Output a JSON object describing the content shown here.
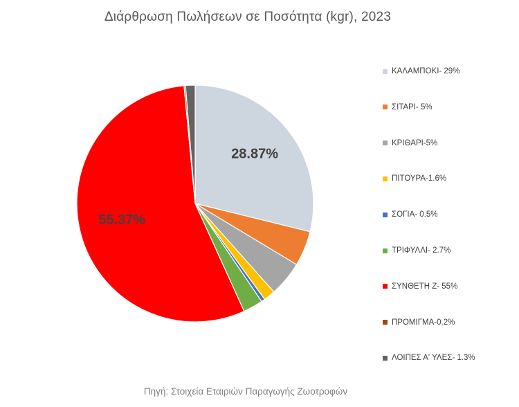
{
  "chart_data": {
    "type": "pie",
    "title": "Διάρθρωση Πωλήσεων σε Ποσότητα (kgr), 2023",
    "source": "Πηγή: Στοιχεία Εταιριών Παραγωγής Ζωοτροφών",
    "legend_position": "right",
    "slices": [
      {
        "label": "ΚΑΛΑΜΠΟΚΙ- 29%",
        "value": 28.87,
        "color": "#cdd5df",
        "data_label": "28.87%"
      },
      {
        "label": "ΣΙΤΑΡΙ- 5%",
        "value": 4.8,
        "color": "#ed7d31",
        "data_label": ""
      },
      {
        "label": "ΚΡΙΘΑΡΙ-5%",
        "value": 4.8,
        "color": "#a5a5a5",
        "data_label": ""
      },
      {
        "label": "ΠΙΤΟΥΡΑ-1.6%",
        "value": 1.6,
        "color": "#ffc000",
        "data_label": ""
      },
      {
        "label": "ΣΟΓΙΑ- 0.5%",
        "value": 0.5,
        "color": "#4472c4",
        "data_label": ""
      },
      {
        "label": "ΤΡΙΦΥΛΛΙ- 2.7%",
        "value": 2.7,
        "color": "#70ad47",
        "data_label": ""
      },
      {
        "label": "ΣΥΝΘΕΤΗ Ζ- 55%",
        "value": 55.37,
        "color": "#ff0000",
        "data_label": "55.37%"
      },
      {
        "label": "ΠΡΟΜΙΓΜΑ-0.2%",
        "value": 0.2,
        "color": "#9e480e",
        "data_label": ""
      },
      {
        "label": "ΛΟΙΠΕΣ Α' ΥΛΕΣ- 1.3%",
        "value": 1.3,
        "color": "#636363",
        "data_label": ""
      }
    ]
  }
}
